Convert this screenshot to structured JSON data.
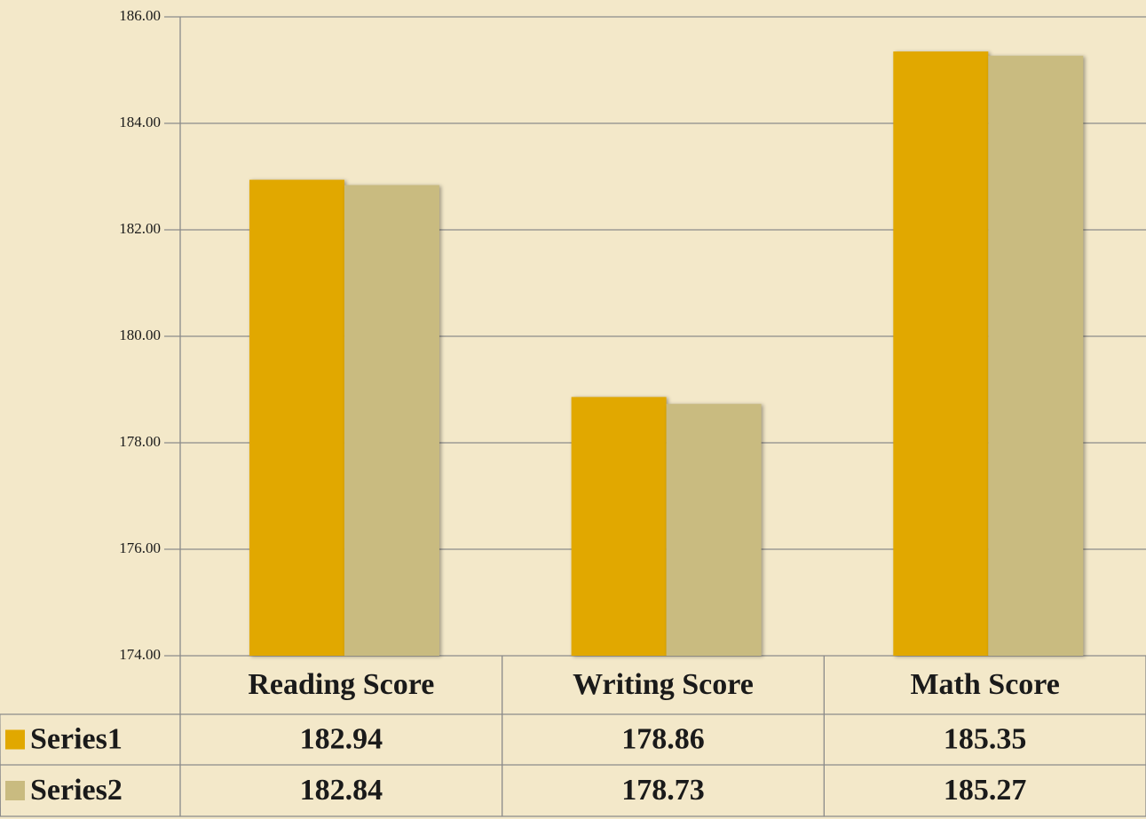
{
  "chart_data": {
    "type": "bar",
    "categories": [
      "Reading Score",
      "Writing Score",
      "Math Score"
    ],
    "series": [
      {
        "name": "Series1",
        "color": "#e1a800",
        "values": [
          182.94,
          178.86,
          185.35
        ]
      },
      {
        "name": "Series2",
        "color": "#c9bb80",
        "values": [
          182.84,
          178.73,
          185.27
        ]
      }
    ],
    "ylim": [
      174,
      186
    ],
    "yticks": [
      {
        "value": 174,
        "label": "174.00"
      },
      {
        "value": 176,
        "label": "176.00"
      },
      {
        "value": 178,
        "label": "178.00"
      },
      {
        "value": 180,
        "label": "180.00"
      },
      {
        "value": 182,
        "label": "182.00"
      },
      {
        "value": 184,
        "label": "184.00"
      },
      {
        "value": 186,
        "label": "186.00"
      }
    ],
    "grid": true,
    "data_table": true
  }
}
